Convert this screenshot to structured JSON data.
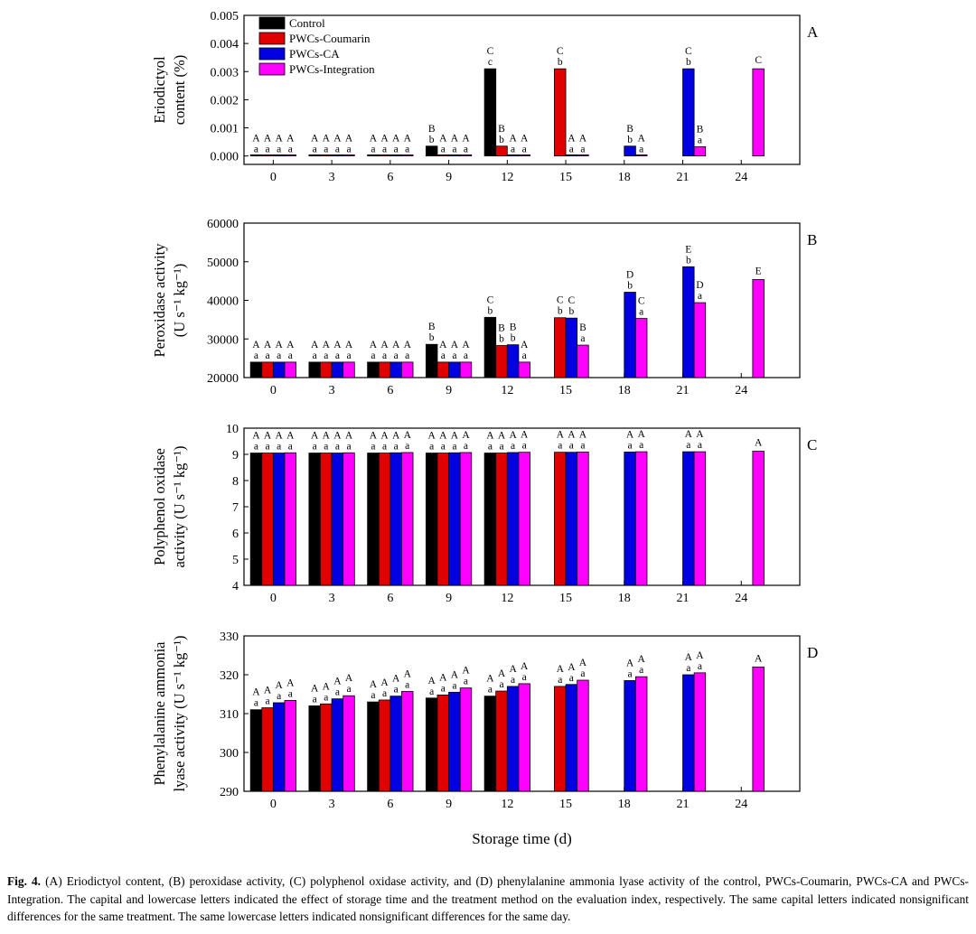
{
  "chart_data": [
    {
      "type": "bar",
      "panel": "A",
      "title": "",
      "ylabel_lines": [
        "Eriodictyol",
        "content (%)"
      ],
      "xlabel": "Storage time (d)",
      "categories": [
        "0",
        "3",
        "6",
        "9",
        "12",
        "15",
        "18",
        "21",
        "24"
      ],
      "ylim": [
        -0.0003,
        0.005
      ],
      "yticks": [
        0.0,
        0.001,
        0.002,
        0.003,
        0.004,
        0.005
      ],
      "ytick_labels": [
        "0.000",
        "0.001",
        "0.002",
        "0.003",
        "0.004",
        "0.005"
      ],
      "legend": "top-left",
      "series": [
        {
          "name": "Control",
          "color": "#000000",
          "values": [
            0.0,
            0.0,
            0.0,
            0.00035,
            0.0031,
            null,
            null,
            null,
            null
          ],
          "upper": [
            "A",
            "A",
            "A",
            "B",
            "C",
            "",
            "",
            "",
            ""
          ],
          "lower": [
            "a",
            "a",
            "a",
            "b",
            "c",
            "",
            "",
            "",
            ""
          ]
        },
        {
          "name": "PWCs-Coumarin",
          "color": "#e00000",
          "values": [
            0.0,
            0.0,
            0.0,
            0.0,
            0.00035,
            0.0031,
            null,
            null,
            null
          ],
          "upper": [
            "A",
            "A",
            "A",
            "A",
            "B",
            "C",
            "",
            "",
            ""
          ],
          "lower": [
            "a",
            "a",
            "a",
            "a",
            "b",
            "b",
            "",
            "",
            ""
          ]
        },
        {
          "name": "PWCs-CA",
          "color": "#0000e0",
          "values": [
            0.0,
            0.0,
            0.0,
            0.0,
            0.0,
            0.0,
            0.00035,
            0.0031,
            null
          ],
          "upper": [
            "A",
            "A",
            "A",
            "A",
            "A",
            "A",
            "B",
            "C",
            ""
          ],
          "lower": [
            "a",
            "a",
            "a",
            "a",
            "a",
            "a",
            "b",
            "b",
            ""
          ]
        },
        {
          "name": "PWCs-Integration",
          "color": "#ff00ff",
          "values": [
            0.0,
            0.0,
            0.0,
            0.0,
            0.0,
            0.0,
            0.0,
            0.00033,
            0.0031
          ],
          "upper": [
            "A",
            "A",
            "A",
            "A",
            "A",
            "A",
            "A",
            "B",
            "C"
          ],
          "lower": [
            "a",
            "a",
            "a",
            "a",
            "a",
            "a",
            "a",
            "a",
            ""
          ]
        }
      ]
    },
    {
      "type": "bar",
      "panel": "B",
      "title": "",
      "ylabel_lines": [
        "Peroxidase activity",
        "(U s⁻¹ kg⁻¹)"
      ],
      "xlabel": "Storage time (d)",
      "categories": [
        "0",
        "3",
        "6",
        "9",
        "12",
        "15",
        "18",
        "21",
        "24"
      ],
      "ylim": [
        20000,
        60000
      ],
      "yticks": [
        20000,
        30000,
        40000,
        50000,
        60000
      ],
      "ytick_labels": [
        "20000",
        "30000",
        "40000",
        "50000",
        "60000"
      ],
      "series": [
        {
          "name": "Control",
          "color": "#000000",
          "values": [
            24000,
            24000,
            24000,
            28600,
            35600,
            null,
            null,
            null,
            null
          ],
          "upper": [
            "A",
            "A",
            "A",
            "B",
            "C",
            "",
            "",
            "",
            ""
          ],
          "lower": [
            "a",
            "a",
            "a",
            "b",
            "b",
            "",
            "",
            "",
            ""
          ]
        },
        {
          "name": "PWCs-Coumarin",
          "color": "#e00000",
          "values": [
            24000,
            24000,
            24000,
            24000,
            28300,
            35500,
            null,
            null,
            null
          ],
          "upper": [
            "A",
            "A",
            "A",
            "A",
            "B",
            "C",
            "",
            "",
            ""
          ],
          "lower": [
            "a",
            "a",
            "a",
            "a",
            "b",
            "b",
            "",
            "",
            ""
          ]
        },
        {
          "name": "PWCs-CA",
          "color": "#0000e0",
          "values": [
            24000,
            24000,
            24000,
            24000,
            28500,
            35400,
            42100,
            48700,
            null
          ],
          "upper": [
            "A",
            "A",
            "A",
            "A",
            "B",
            "C",
            "D",
            "E",
            ""
          ],
          "lower": [
            "a",
            "a",
            "a",
            "a",
            "b",
            "b",
            "b",
            "b",
            ""
          ]
        },
        {
          "name": "PWCs-Integration",
          "color": "#ff00ff",
          "values": [
            24000,
            24000,
            24000,
            24000,
            24000,
            28400,
            35300,
            39400,
            45400
          ],
          "upper": [
            "A",
            "A",
            "A",
            "A",
            "A",
            "B",
            "C",
            "D",
            "E"
          ],
          "lower": [
            "a",
            "a",
            "a",
            "a",
            "a",
            "a",
            "a",
            "a",
            ""
          ]
        }
      ]
    },
    {
      "type": "bar",
      "panel": "C",
      "title": "",
      "ylabel_lines": [
        "Polyphenol oxidase",
        "activity  (U s⁻¹ kg⁻¹)"
      ],
      "xlabel": "Storage time (d)",
      "categories": [
        "0",
        "3",
        "6",
        "9",
        "12",
        "15",
        "18",
        "21",
        "24"
      ],
      "ylim": [
        4,
        10
      ],
      "yticks": [
        4,
        5,
        6,
        7,
        8,
        9,
        10
      ],
      "ytick_labels": [
        "4",
        "5",
        "6",
        "7",
        "8",
        "9",
        "10"
      ],
      "series": [
        {
          "name": "Control",
          "color": "#000000",
          "values": [
            9.05,
            9.05,
            9.05,
            9.05,
            9.05,
            null,
            null,
            null,
            null
          ],
          "upper": [
            "A",
            "A",
            "A",
            "A",
            "A",
            "",
            "",
            "",
            ""
          ],
          "lower": [
            "a",
            "a",
            "a",
            "a",
            "a",
            "",
            "",
            "",
            ""
          ]
        },
        {
          "name": "PWCs-Coumarin",
          "color": "#e00000",
          "values": [
            9.05,
            9.05,
            9.05,
            9.05,
            9.05,
            9.08,
            null,
            null,
            null
          ],
          "upper": [
            "A",
            "A",
            "A",
            "A",
            "A",
            "A",
            "",
            "",
            ""
          ],
          "lower": [
            "a",
            "a",
            "a",
            "a",
            "a",
            "a",
            "",
            "",
            ""
          ]
        },
        {
          "name": "PWCs-CA",
          "color": "#0000e0",
          "values": [
            9.05,
            9.05,
            9.06,
            9.06,
            9.07,
            9.08,
            9.09,
            9.1,
            null
          ],
          "upper": [
            "A",
            "A",
            "A",
            "A",
            "A",
            "A",
            "A",
            "A",
            ""
          ],
          "lower": [
            "a",
            "a",
            "a",
            "a",
            "a",
            "a",
            "a",
            "a",
            ""
          ]
        },
        {
          "name": "PWCs-Integration",
          "color": "#ff00ff",
          "values": [
            9.06,
            9.06,
            9.07,
            9.07,
            9.08,
            9.09,
            9.1,
            9.1,
            9.12
          ],
          "upper": [
            "A",
            "A",
            "A",
            "A",
            "A",
            "A",
            "A",
            "A",
            "A"
          ],
          "lower": [
            "a",
            "a",
            "a",
            "a",
            "a",
            "a",
            "a",
            "a",
            ""
          ]
        }
      ]
    },
    {
      "type": "bar",
      "panel": "D",
      "title": "",
      "ylabel_lines": [
        "Phenylalanine ammonia",
        "lyase  activity (U s⁻¹ kg⁻¹)"
      ],
      "xlabel": "Storage time (d)",
      "categories": [
        "0",
        "3",
        "6",
        "9",
        "12",
        "15",
        "18",
        "21",
        "24"
      ],
      "ylim": [
        290,
        330
      ],
      "yticks": [
        290,
        300,
        310,
        320,
        330
      ],
      "ytick_labels": [
        "290",
        "300",
        "310",
        "320",
        "330"
      ],
      "series": [
        {
          "name": "Control",
          "color": "#000000",
          "values": [
            311,
            312,
            313,
            314,
            314.5,
            null,
            null,
            null,
            null
          ],
          "upper": [
            "A",
            "A",
            "A",
            "A",
            "A",
            "",
            "",
            "",
            ""
          ],
          "lower": [
            "a",
            "a",
            "a",
            "a",
            "a",
            "",
            "",
            "",
            ""
          ]
        },
        {
          "name": "PWCs-Coumarin",
          "color": "#e00000",
          "values": [
            311.5,
            312.5,
            313.5,
            314.8,
            315.8,
            317,
            null,
            null,
            null
          ],
          "upper": [
            "A",
            "A",
            "A",
            "A",
            "A",
            "A",
            "",
            "",
            ""
          ],
          "lower": [
            "a",
            "a",
            "a",
            "a",
            "a",
            "a",
            "",
            "",
            ""
          ]
        },
        {
          "name": "PWCs-CA",
          "color": "#0000e0",
          "values": [
            312.8,
            313.8,
            314.5,
            315.5,
            317,
            317.5,
            318.5,
            320,
            null
          ],
          "upper": [
            "A",
            "A",
            "A",
            "A",
            "A",
            "A",
            "A",
            "A",
            ""
          ],
          "lower": [
            "a",
            "a",
            "a",
            "a",
            "a",
            "a",
            "a",
            "a",
            ""
          ]
        },
        {
          "name": "PWCs-Integration",
          "color": "#ff00ff",
          "values": [
            313.4,
            314.6,
            315.7,
            316.6,
            317.7,
            318.6,
            319.5,
            320.5,
            322
          ],
          "upper": [
            "A",
            "A",
            "A",
            "A",
            "A",
            "A",
            "A",
            "A",
            "A"
          ],
          "lower": [
            "a",
            "a",
            "a",
            "a",
            "a",
            "a",
            "a",
            "a",
            ""
          ]
        }
      ]
    }
  ],
  "caption": {
    "label": "Fig. 4.",
    "text": "(A) Eriodictyol content, (B) peroxidase activity, (C) polyphenol oxidase activity, and (D) phenylalanine ammonia lyase activity of the control, PWCs-Coumarin, PWCs-CA and PWCs-Integration. The capital and lowercase letters indicated the effect of storage time and the treatment method on the evaluation index, respectively. The same capital letters indicated nonsignificant differences for the same treatment. The same lowercase letters indicated nonsignificant differences for the same day."
  }
}
